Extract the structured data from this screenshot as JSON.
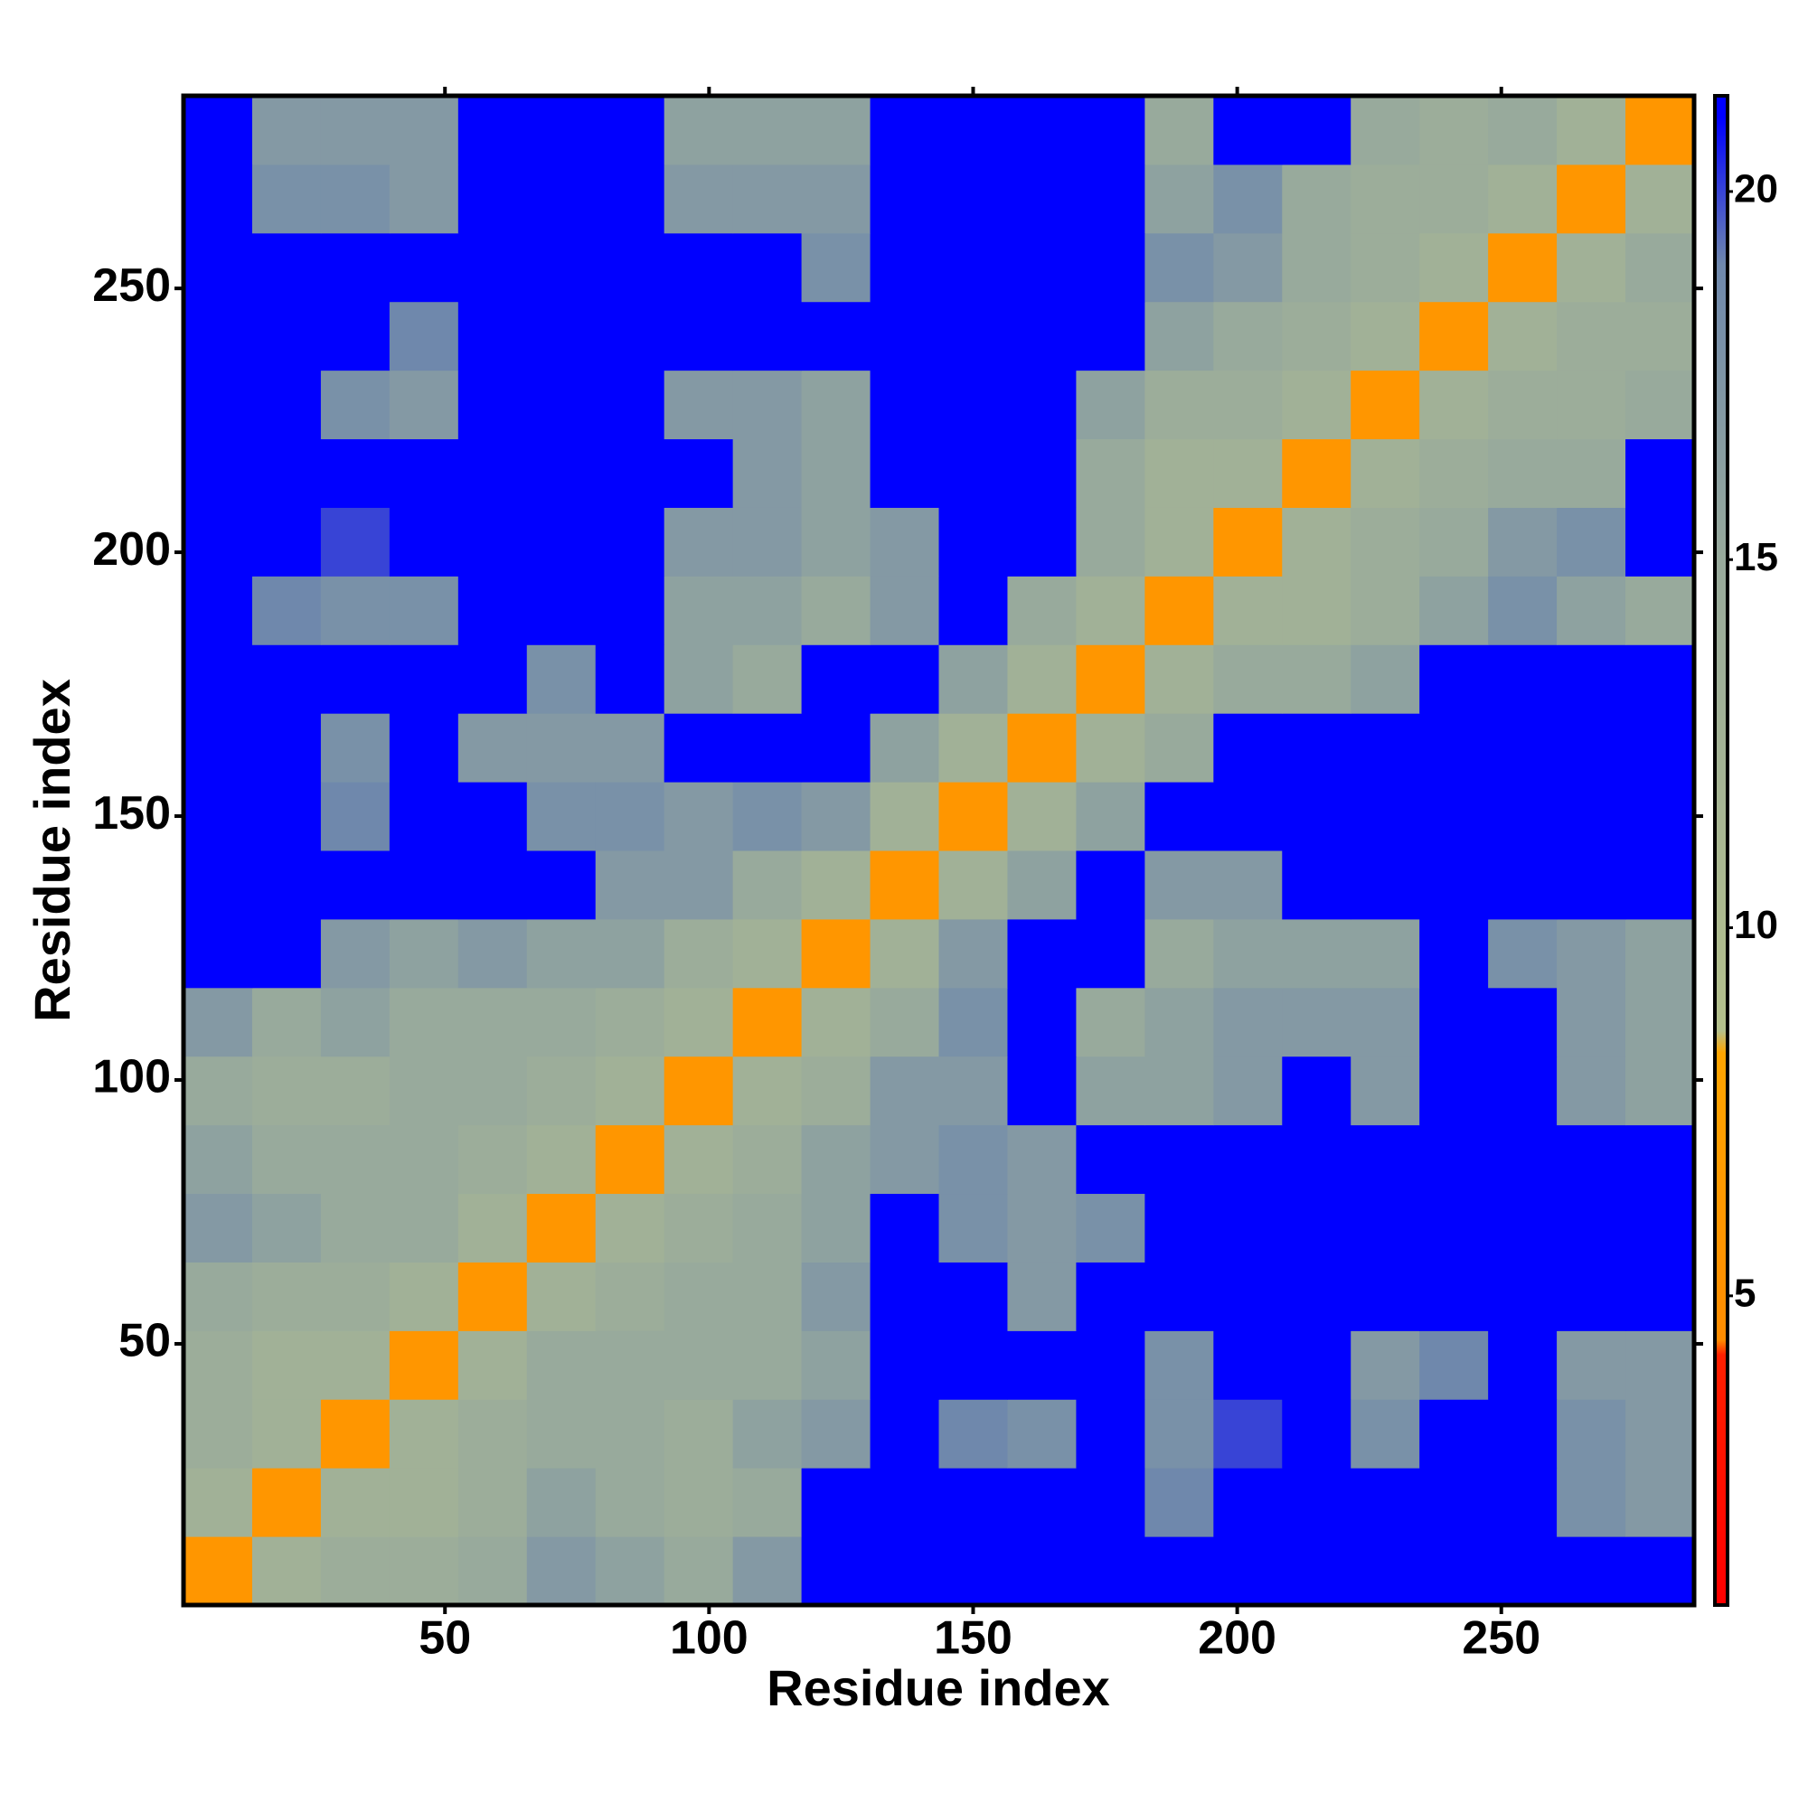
{
  "chart_data": {
    "type": "heatmap",
    "x_label": "Residue index",
    "y_label": "Residue index",
    "x": [
      7,
      20,
      33,
      46,
      59,
      72,
      85,
      98,
      111,
      124,
      137,
      150,
      163,
      176,
      189,
      202,
      215,
      228,
      241,
      254,
      267,
      280
    ],
    "y": [
      7,
      20,
      33,
      46,
      59,
      72,
      85,
      98,
      111,
      124,
      137,
      150,
      163,
      176,
      189,
      202,
      215,
      228,
      241,
      254,
      267,
      280
    ],
    "z": [
      [
        6,
        13,
        14,
        14,
        15,
        17,
        16,
        15,
        17,
        21,
        21,
        21,
        21,
        21,
        21,
        21,
        21,
        21,
        21,
        21,
        21,
        21
      ],
      [
        13,
        6,
        13,
        13,
        14,
        16,
        15,
        14,
        15,
        21,
        21,
        21,
        21,
        21,
        19,
        21,
        21,
        21,
        21,
        21,
        18,
        17
      ],
      [
        14,
        13,
        6,
        13,
        14,
        15,
        15,
        14,
        16,
        17,
        21,
        19,
        18,
        21,
        18,
        20,
        21,
        18,
        21,
        21,
        18,
        17
      ],
      [
        14,
        13,
        13,
        6,
        13,
        15,
        15,
        15,
        15,
        16,
        21,
        21,
        21,
        21,
        18,
        21,
        21,
        17,
        19,
        21,
        17,
        17
      ],
      [
        15,
        14,
        14,
        13,
        6,
        13,
        14,
        15,
        15,
        17,
        21,
        21,
        17,
        21,
        21,
        21,
        21,
        21,
        21,
        21,
        21,
        21
      ],
      [
        17,
        16,
        15,
        15,
        13,
        6,
        13,
        14,
        15,
        16,
        21,
        18,
        17,
        18,
        21,
        21,
        21,
        21,
        21,
        21,
        21,
        21
      ],
      [
        16,
        15,
        15,
        15,
        14,
        13,
        6,
        13,
        14,
        16,
        17,
        18,
        17,
        21,
        21,
        21,
        21,
        21,
        21,
        21,
        21,
        21
      ],
      [
        15,
        14,
        14,
        15,
        15,
        14,
        13,
        6,
        13,
        14,
        17,
        17,
        21,
        16,
        16,
        17,
        21,
        17,
        21,
        21,
        17,
        16
      ],
      [
        17,
        15,
        16,
        15,
        15,
        15,
        14,
        13,
        6,
        13,
        15,
        18,
        21,
        15,
        16,
        17,
        17,
        17,
        21,
        21,
        17,
        16
      ],
      [
        21,
        21,
        17,
        16,
        17,
        16,
        16,
        14,
        13,
        6,
        13,
        17,
        21,
        21,
        15,
        16,
        16,
        16,
        21,
        18,
        17,
        16
      ],
      [
        21,
        21,
        21,
        21,
        21,
        21,
        17,
        17,
        15,
        13,
        6,
        13,
        16,
        21,
        17,
        17,
        21,
        21,
        21,
        21,
        21,
        21
      ],
      [
        21,
        21,
        19,
        21,
        21,
        18,
        18,
        17,
        18,
        17,
        13,
        6,
        13,
        16,
        21,
        21,
        21,
        21,
        21,
        21,
        21,
        21
      ],
      [
        21,
        21,
        18,
        21,
        17,
        17,
        17,
        21,
        21,
        21,
        16,
        13,
        6,
        13,
        15,
        21,
        21,
        21,
        21,
        21,
        21,
        21
      ],
      [
        21,
        21,
        21,
        21,
        21,
        18,
        21,
        16,
        15,
        21,
        21,
        16,
        13,
        6,
        13,
        15,
        15,
        16,
        21,
        21,
        21,
        21
      ],
      [
        21,
        19,
        18,
        18,
        21,
        21,
        21,
        16,
        16,
        15,
        17,
        21,
        15,
        13,
        6,
        13,
        13,
        14,
        16,
        18,
        16,
        15
      ],
      [
        21,
        21,
        20,
        21,
        21,
        21,
        21,
        17,
        17,
        16,
        17,
        21,
        21,
        15,
        13,
        6,
        13,
        14,
        15,
        17,
        18,
        21
      ],
      [
        21,
        21,
        21,
        21,
        21,
        21,
        21,
        21,
        17,
        16,
        21,
        21,
        21,
        15,
        13,
        13,
        6,
        13,
        14,
        15,
        15,
        21
      ],
      [
        21,
        21,
        18,
        17,
        21,
        21,
        21,
        17,
        17,
        16,
        21,
        21,
        21,
        16,
        14,
        14,
        13,
        6,
        13,
        14,
        14,
        15
      ],
      [
        21,
        21,
        21,
        19,
        21,
        21,
        21,
        21,
        21,
        21,
        21,
        21,
        21,
        21,
        16,
        15,
        14,
        13,
        6,
        13,
        14,
        14
      ],
      [
        21,
        21,
        21,
        21,
        21,
        21,
        21,
        21,
        21,
        18,
        21,
        21,
        21,
        21,
        18,
        17,
        15,
        14,
        13,
        6,
        13,
        15
      ],
      [
        21,
        18,
        18,
        17,
        21,
        21,
        21,
        17,
        17,
        17,
        21,
        21,
        21,
        21,
        16,
        18,
        15,
        14,
        14,
        13,
        6,
        13
      ],
      [
        21,
        17,
        17,
        17,
        21,
        21,
        21,
        16,
        16,
        16,
        21,
        21,
        21,
        21,
        15,
        21,
        21,
        15,
        14,
        15,
        13,
        6
      ]
    ],
    "xlim": [
      0.5,
      286.5
    ],
    "ylim": [
      0.5,
      286.5
    ],
    "xticks": [
      50,
      100,
      150,
      200,
      250
    ],
    "yticks": [
      50,
      100,
      150,
      200,
      250
    ],
    "zlim": [
      0.8,
      21.3
    ],
    "zticks": [
      5,
      10,
      15,
      20
    ],
    "colorscale": [
      [
        0.8,
        "#ff0000"
      ],
      [
        4.2,
        "#ff2000"
      ],
      [
        4.4,
        "#ff8c00"
      ],
      [
        8.3,
        "#ffa500"
      ],
      [
        8.6,
        "#b4c08c"
      ],
      [
        15,
        "#98aa9c"
      ],
      [
        19,
        "#6f88ac"
      ],
      [
        21,
        "#0000ff"
      ]
    ]
  }
}
